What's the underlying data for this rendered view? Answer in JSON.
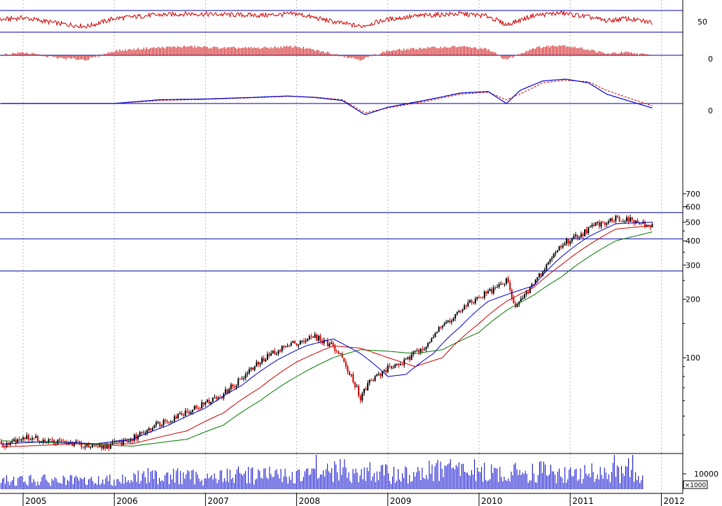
{
  "chart_data": {
    "type": "line",
    "price_scale": "log",
    "grid": "vertical dotted lines at year starts",
    "x_ticks": [
      "2005",
      "2006",
      "2007",
      "2008",
      "2009",
      "2010",
      "2011",
      "2012"
    ],
    "colors": {
      "up_candle": "#000000",
      "down_candle": "#cc0000",
      "ma_short": "#0000cc",
      "ma_mid": "#cc0000",
      "ma_long": "#007700",
      "reference_line": "#0000aa",
      "volume": "#0000cc",
      "momentum": "#cc0000",
      "macd": "#0000cc",
      "signal": "#cc0000"
    },
    "panels": [
      {
        "id": "rsi",
        "y_ticks": [
          "50"
        ],
        "series": [
          {
            "x": [
              2004.2,
              2004.6,
              2005.0,
              2005.4,
              2005.7,
              2006.0,
              2006.4,
              2006.8,
              2007.2,
              2007.6,
              2008.0,
              2008.4,
              2008.7,
              2009.0,
              2009.4,
              2009.8,
              2010.1,
              2010.3,
              2010.6,
              2010.9,
              2011.2,
              2011.4,
              2011.6,
              2011.9
            ],
            "y": [
              55,
              52,
              60,
              45,
              38,
              58,
              66,
              70,
              68,
              66,
              70,
              50,
              38,
              56,
              66,
              70,
              64,
              42,
              66,
              72,
              62,
              52,
              58,
              48
            ]
          }
        ]
      },
      {
        "id": "momentum",
        "y_ticks": [
          "0"
        ],
        "series": [
          {
            "x": [
              2004.2,
              2004.6,
              2005.0,
              2005.4,
              2005.7,
              2006.0,
              2006.4,
              2006.8,
              2007.2,
              2007.6,
              2008.0,
              2008.4,
              2008.7,
              2009.0,
              2009.4,
              2009.8,
              2010.1,
              2010.3,
              2010.6,
              2010.9,
              2011.2,
              2011.4,
              2011.6,
              2011.9
            ],
            "y": [
              -2,
              -1,
              2,
              -2,
              -3,
              3,
              5,
              6,
              5,
              5,
              6,
              1,
              -3,
              3,
              5,
              6,
              4,
              -3,
              5,
              7,
              4,
              1,
              2,
              0
            ]
          }
        ]
      },
      {
        "id": "macd",
        "y_ticks": [
          "0"
        ],
        "series": [
          {
            "name": "",
            "x": [
              2004.2,
              2005.0,
              2006.0,
              2006.5,
              2007.0,
              2007.5,
              2007.9,
              2008.2,
              2008.5,
              2008.75,
              2009.0,
              2009.4,
              2009.8,
              2010.1,
              2010.3,
              2010.45,
              2010.7,
              2010.95,
              2011.2,
              2011.4,
              2011.6,
              2011.9
            ],
            "y": [
              0,
              0,
              0,
              1,
              1.2,
              1.6,
              2.0,
              1.6,
              0.8,
              -3.0,
              -1.0,
              0.8,
              2.8,
              3.2,
              0.0,
              3.5,
              6.0,
              6.5,
              5.5,
              2.5,
              1.0,
              -1.2
            ]
          },
          {
            "name": "",
            "x": [
              2004.2,
              2005.0,
              2006.0,
              2006.5,
              2007.0,
              2007.5,
              2007.9,
              2008.2,
              2008.5,
              2008.75,
              2009.0,
              2009.4,
              2009.8,
              2010.1,
              2010.3,
              2010.45,
              2010.7,
              2010.95,
              2011.2,
              2011.4,
              2011.6,
              2011.9
            ],
            "y": [
              0,
              0,
              0,
              0.8,
              1.1,
              1.5,
              1.9,
              1.7,
              1.0,
              -2.5,
              -1.2,
              0.5,
              2.5,
              3.0,
              1.0,
              2.5,
              5.5,
              6.2,
              5.8,
              3.5,
              1.8,
              -0.6
            ]
          }
        ]
      },
      {
        "id": "price",
        "y_ticks": [
          "700",
          "600",
          "500",
          "400",
          "300",
          "200",
          "100"
        ],
        "reference_levels": [
          560,
          410,
          280
        ],
        "series": [
          {
            "name": "",
            "role": "close",
            "x": [
              2004.2,
              2004.5,
              2004.8,
              2005.0,
              2005.3,
              2005.6,
              2005.8,
              2006.0,
              2006.2,
              2006.4,
              2006.6,
              2006.8,
              2007.0,
              2007.2,
              2007.4,
              2007.6,
              2007.8,
              2008.0,
              2008.2,
              2008.4,
              2008.55,
              2008.7,
              2008.8,
              2009.0,
              2009.2,
              2009.4,
              2009.6,
              2009.8,
              2010.0,
              2010.2,
              2010.3,
              2010.4,
              2010.5,
              2010.7,
              2010.9,
              2011.1,
              2011.3,
              2011.5,
              2011.7,
              2011.9
            ],
            "y": [
              37,
              38,
              36,
              39,
              37,
              36,
              34,
              36,
              38,
              44,
              48,
              53,
              58,
              65,
              78,
              95,
              110,
              120,
              128,
              115,
              90,
              62,
              75,
              88,
              96,
              115,
              145,
              175,
              205,
              230,
              250,
              185,
              205,
              280,
              380,
              430,
              490,
              525,
              505,
              470
            ]
          },
          {
            "name": "",
            "role": "ma_short",
            "x": [
              2004.2,
              2004.8,
              2005.3,
              2005.8,
              2006.2,
              2006.6,
              2007.0,
              2007.4,
              2007.8,
              2008.1,
              2008.4,
              2008.7,
              2009.0,
              2009.2,
              2009.5,
              2009.8,
              2010.1,
              2010.35,
              2010.6,
              2010.9,
              2011.2,
              2011.5,
              2011.9
            ],
            "y": [
              35,
              36,
              37,
              36,
              38,
              45,
              55,
              72,
              98,
              115,
              125,
              105,
              80,
              82,
              105,
              145,
              195,
              215,
              235,
              330,
              420,
              490,
              500
            ]
          },
          {
            "name": "",
            "role": "ma_mid",
            "x": [
              2004.2,
              2005.0,
              2005.6,
              2006.2,
              2006.8,
              2007.2,
              2007.6,
              2008.0,
              2008.4,
              2008.7,
              2009.0,
              2009.3,
              2009.6,
              2010.0,
              2010.3,
              2010.6,
              2010.9,
              2011.2,
              2011.5,
              2011.9
            ],
            "y": [
              34,
              35,
              36,
              36,
              42,
              52,
              70,
              95,
              115,
              112,
              100,
              90,
              100,
              150,
              195,
              230,
              300,
              380,
              460,
              480
            ]
          },
          {
            "name": "",
            "role": "ma_long",
            "x": [
              2004.2,
              2005.0,
              2005.6,
              2006.2,
              2006.8,
              2007.2,
              2007.6,
              2008.0,
              2008.4,
              2008.7,
              2009.0,
              2009.3,
              2009.6,
              2010.0,
              2010.3,
              2010.6,
              2010.9,
              2011.2,
              2011.5,
              2011.9
            ],
            "y": [
              38,
              37,
              36,
              35,
              38,
              45,
              60,
              80,
              100,
              110,
              108,
              105,
              110,
              135,
              175,
              210,
              260,
              330,
              400,
              445
            ]
          }
        ]
      },
      {
        "id": "volume",
        "y_ticks": [
          "10000"
        ],
        "unit": "×1000",
        "series": [
          {
            "name": "",
            "x": [
              2004.2,
              2005.0,
              2005.8,
              2006.5,
              2007.0,
              2007.5,
              2008.0,
              2008.5,
              2008.8,
              2009.2,
              2009.7,
              2010.2,
              2010.6,
              2011.0,
              2011.4,
              2011.8
            ],
            "y": [
              3000,
              4000,
              3500,
              6000,
              5000,
              6500,
              5500,
              8000,
              7000,
              6000,
              9000,
              6500,
              8000,
              6000,
              7500,
              5000
            ]
          }
        ]
      }
    ]
  }
}
